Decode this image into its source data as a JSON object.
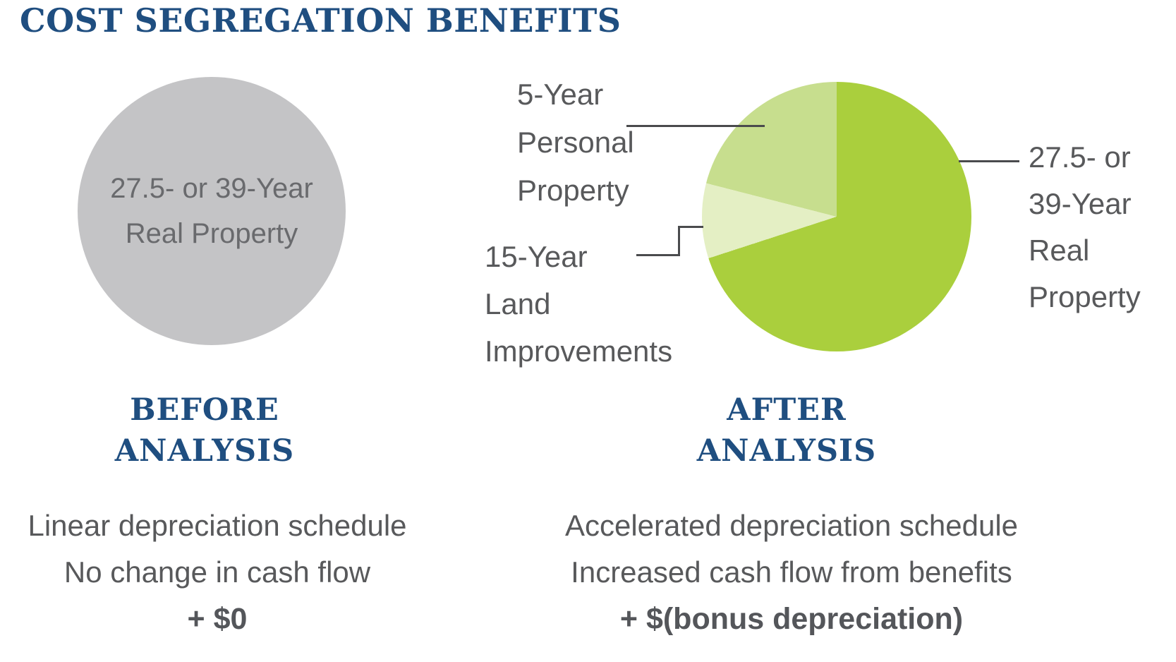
{
  "header": {
    "title": "COST SEGREGATION BENEFITS"
  },
  "colors": {
    "heading_blue": "#1f4e80",
    "body_gray": "#58595b",
    "bold_gray": "#54565a",
    "circle_gray": "#c4c4c6",
    "circle_text_gray": "#696a6d",
    "pie_main_green": "#aacf3d",
    "pie_medium_green": "#c7de8e",
    "pie_light_green": "#e4efc4",
    "leader_line_gray": "#4a4b4d"
  },
  "before": {
    "circle_label": {
      "line1": "27.5- or 39-Year",
      "line2": "Real Property"
    },
    "caption": {
      "line1": "BEFORE",
      "line2": "ANALYSIS"
    },
    "notes": [
      "Linear depreciation schedule",
      "No change in cash flow"
    ],
    "benefit": "+ $0"
  },
  "after": {
    "caption": {
      "line1": "AFTER",
      "line2": "ANALYSIS"
    },
    "labels": {
      "personal": [
        "5-Year",
        "Personal",
        "Property"
      ],
      "land": [
        "15-Year",
        "Land",
        "Improvements"
      ],
      "real": [
        "27.5- or",
        "39-Year",
        "Real",
        "Property"
      ]
    },
    "notes": [
      "Accelerated depreciation schedule",
      "Increased cash flow from benefits"
    ],
    "benefit": "+ $(bonus depreciation)"
  },
  "chart_data": [
    {
      "type": "pie",
      "title": "BEFORE ANALYSIS",
      "slices": [
        {
          "label": "27.5- or 39-Year Real Property",
          "value": 100,
          "color": "#c4c4c6"
        }
      ],
      "annotations": [
        "Linear depreciation schedule",
        "No change in cash flow",
        "+ $0"
      ]
    },
    {
      "type": "pie",
      "title": "AFTER ANALYSIS",
      "start_angle_deg": 0,
      "direction": "clockwise",
      "slices": [
        {
          "label": "27.5- or 39-Year Real Property",
          "value": 70,
          "color": "#aacf3d"
        },
        {
          "label": "15-Year Land Improvements",
          "value": 9,
          "color": "#e4efc4"
        },
        {
          "label": "5-Year Personal Property",
          "value": 21,
          "color": "#c7de8e"
        }
      ],
      "annotations": [
        "Accelerated depreciation schedule",
        "Increased cash flow from benefits",
        "+ $(bonus depreciation)"
      ]
    }
  ]
}
